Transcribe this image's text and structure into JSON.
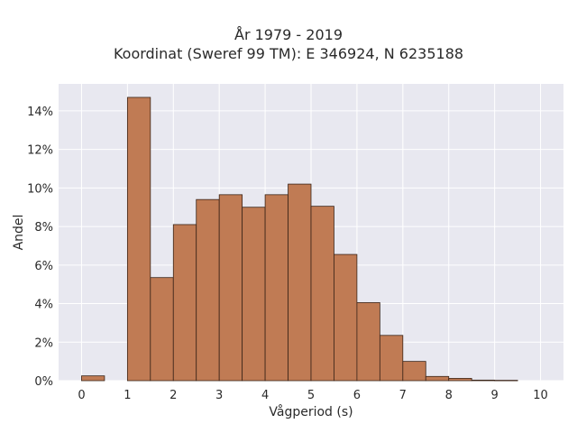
{
  "chart_data": {
    "type": "bar",
    "title": "År 1979 - 2019",
    "subtitle": "Koordinat (Sweref 99 TM): E 346924, N 6235188",
    "xlabel": "Vågperiod (s)",
    "ylabel": "Andel",
    "bin_width": 0.5,
    "bins": [
      {
        "start": 0.0,
        "value": 0.25
      },
      {
        "start": 0.5,
        "value": 0.0
      },
      {
        "start": 1.0,
        "value": 14.7
      },
      {
        "start": 1.5,
        "value": 5.35
      },
      {
        "start": 2.0,
        "value": 8.1
      },
      {
        "start": 2.5,
        "value": 9.4
      },
      {
        "start": 3.0,
        "value": 9.65
      },
      {
        "start": 3.5,
        "value": 9.0
      },
      {
        "start": 4.0,
        "value": 9.65
      },
      {
        "start": 4.5,
        "value": 10.2
      },
      {
        "start": 5.0,
        "value": 9.05
      },
      {
        "start": 5.5,
        "value": 6.55
      },
      {
        "start": 6.0,
        "value": 4.05
      },
      {
        "start": 6.5,
        "value": 2.35
      },
      {
        "start": 7.0,
        "value": 1.0
      },
      {
        "start": 7.5,
        "value": 0.22
      },
      {
        "start": 8.0,
        "value": 0.12
      },
      {
        "start": 8.5,
        "value": 0.03
      },
      {
        "start": 9.0,
        "value": 0.02
      }
    ],
    "xticks": [
      "0",
      "1",
      "2",
      "3",
      "4",
      "5",
      "6",
      "7",
      "8",
      "9",
      "10"
    ],
    "yticks": [
      "0%",
      "2%",
      "4%",
      "6%",
      "8%",
      "10%",
      "12%",
      "14%"
    ],
    "xlim": [
      -0.5,
      10.5
    ],
    "ylim": [
      0,
      15.4
    ],
    "grid": true,
    "colors": {
      "bar_fill": "#c07b54",
      "bar_edge": "#3a2418",
      "plot_bg": "#e8e8f0",
      "grid": "#ffffff"
    }
  }
}
